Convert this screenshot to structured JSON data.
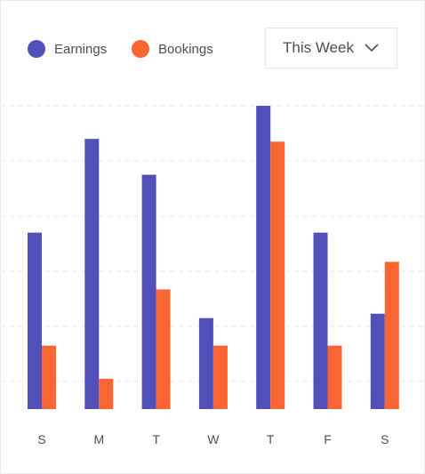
{
  "legend": {
    "earnings_label": "Earnings",
    "bookings_label": "Bookings",
    "earnings_color": "#5150b8",
    "bookings_color": "#f96533"
  },
  "period_select": {
    "selected": "This Week",
    "icon": "chevron-down-icon"
  },
  "chart_data": {
    "type": "bar",
    "categories": [
      "S",
      "M",
      "T",
      "W",
      "T",
      "F",
      "S"
    ],
    "series": [
      {
        "name": "Earnings",
        "color": "#5150b8",
        "values": [
          32,
          49,
          42.5,
          16.5,
          55,
          32,
          17.3
        ]
      },
      {
        "name": "Bookings",
        "color": "#f96533",
        "values": [
          11.5,
          5.5,
          21.7,
          11.5,
          48.5,
          11.5,
          26.7
        ]
      }
    ],
    "ylim": [
      0,
      55
    ],
    "gridlines": [
      5,
      15,
      25,
      35,
      45,
      55
    ],
    "grid": true,
    "legend_position": "top-left",
    "title": "",
    "xlabel": "",
    "ylabel": ""
  }
}
